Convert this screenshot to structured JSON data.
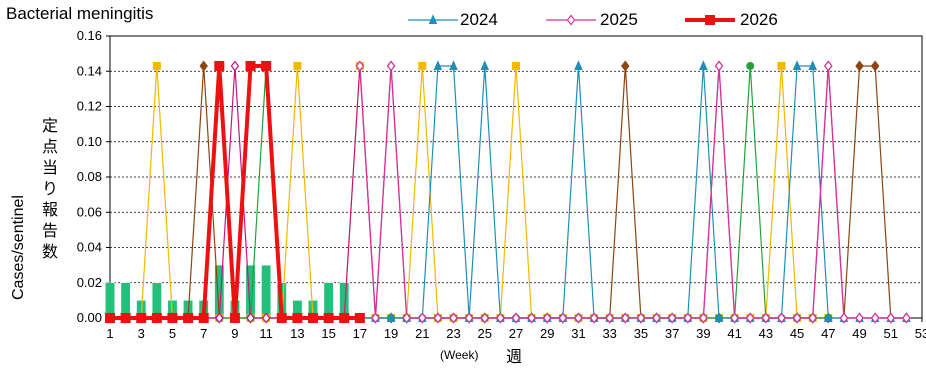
{
  "chart_data": {
    "type": "line",
    "title": "Bacterial meningitis",
    "ylabel": "Cases/sentinel",
    "ylabel_jp": "定点当り報告数",
    "xlabel": "(Week)",
    "xlabel_jp": "週",
    "xlim": [
      1,
      53
    ],
    "ylim": [
      0,
      0.16
    ],
    "yticks": [
      "0.00",
      "0.02",
      "0.04",
      "0.06",
      "0.08",
      "0.10",
      "0.12",
      "0.14",
      "0.16"
    ],
    "xticks": [
      "1",
      "3",
      "5",
      "7",
      "9",
      "11",
      "13",
      "15",
      "17",
      "19",
      "21",
      "23",
      "25",
      "27",
      "29",
      "31",
      "33",
      "35",
      "37",
      "39",
      "41",
      "43",
      "45",
      "47",
      "49",
      "51",
      "53"
    ],
    "grid": "horizontal-dotted",
    "legend_position": "top",
    "bars": {
      "color": "#22c07a",
      "weeks": [
        1,
        2,
        3,
        4,
        5,
        6,
        7,
        8,
        9,
        10,
        11,
        12,
        13,
        14,
        15,
        16
      ],
      "values": [
        0.02,
        0.02,
        0.01,
        0.02,
        0.01,
        0.01,
        0.01,
        0.03,
        0.01,
        0.03,
        0.03,
        0.02,
        0.01,
        0.01,
        0.02,
        0.02
      ]
    },
    "background_series": [
      {
        "color": "#f5b800",
        "marker": "square",
        "peaks": [
          4,
          13,
          17,
          21,
          27,
          44
        ],
        "range": [
          1,
          47
        ]
      },
      {
        "color": "#8b4513",
        "marker": "diamond",
        "peaks": [
          7,
          34,
          49,
          50
        ],
        "range": [
          1,
          52
        ]
      },
      {
        "color": "#22a33a",
        "marker": "circle",
        "peaks": [
          11,
          42
        ],
        "range": [
          1,
          47
        ]
      },
      {
        "color": "#c71585",
        "marker": "diamond-open",
        "peaks": [
          9,
          17,
          19,
          40,
          47
        ],
        "range": [
          1,
          52
        ],
        "open": true
      }
    ],
    "series": [
      {
        "name": "2024",
        "color": "#1e90b8",
        "marker": "triangle",
        "peaks": [
          22,
          23,
          25,
          31,
          39,
          45,
          46
        ],
        "range": [
          17,
          52
        ]
      },
      {
        "name": "2025",
        "color": "#d6339a",
        "marker": "diamond-open",
        "peaks": [
          17,
          19,
          40,
          47
        ],
        "range": [
          17,
          52
        ]
      },
      {
        "name": "2026",
        "color": "#ee1111",
        "marker": "square",
        "peaks": [
          8,
          10,
          11
        ],
        "range": [
          1,
          17
        ]
      }
    ],
    "peak_value": 0.143
  }
}
